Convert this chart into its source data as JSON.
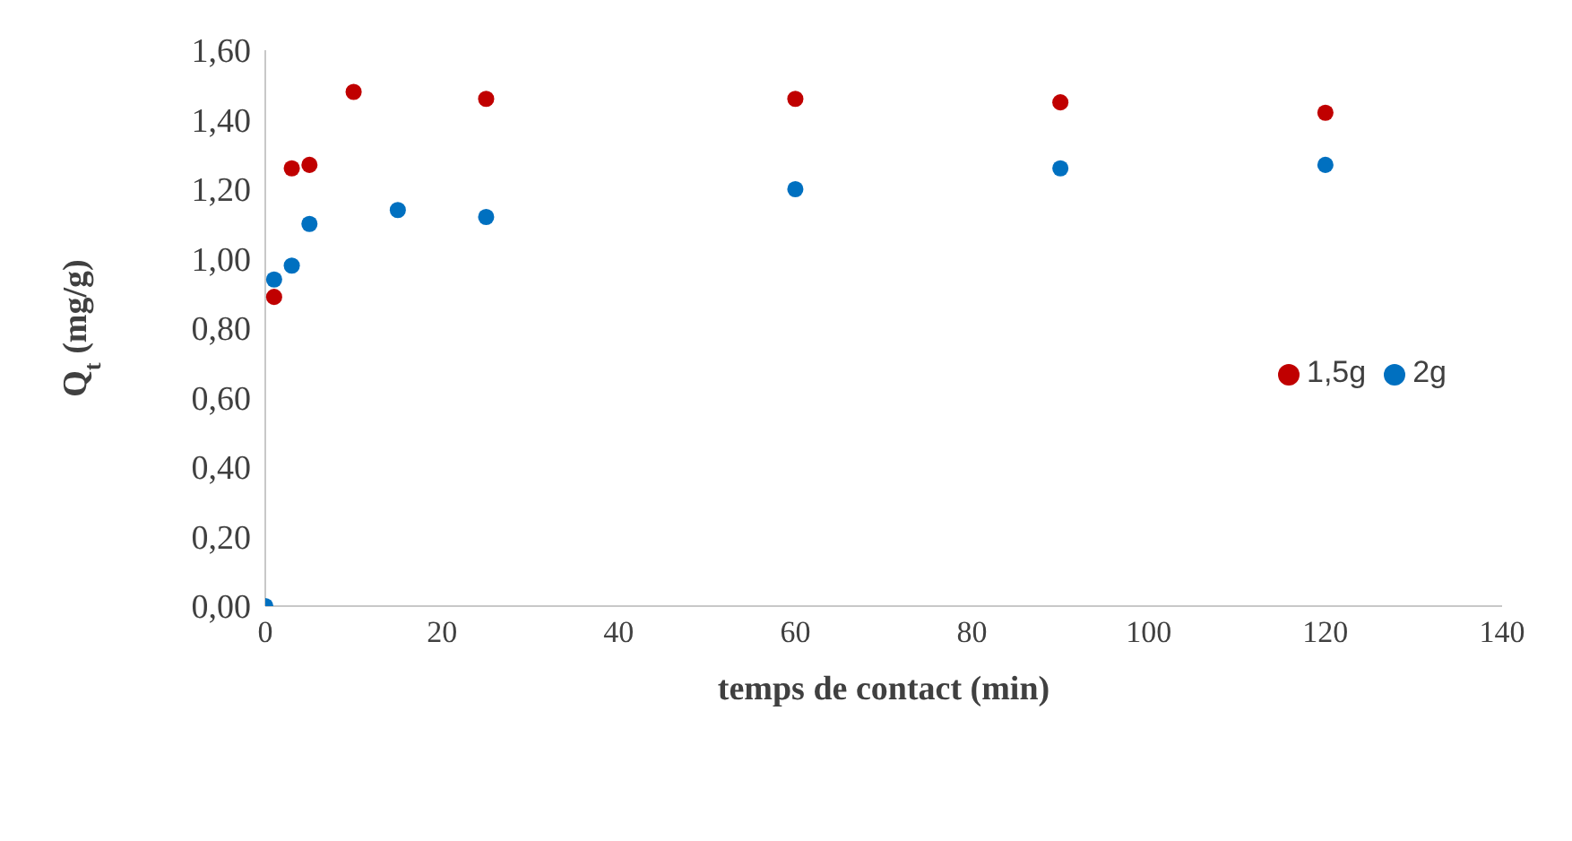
{
  "chart_data": {
    "type": "scatter",
    "xlabel": "temps de contact (min)",
    "ylabel": "Q$_{t}$ (mg/g)",
    "series": [
      {
        "name": "1,5g",
        "color": "#c00000",
        "x": [
          1,
          3,
          5,
          10,
          25,
          60,
          90,
          120
        ],
        "values": [
          0.89,
          1.26,
          1.27,
          1.48,
          1.46,
          1.46,
          1.45,
          1.42
        ]
      },
      {
        "name": "2g",
        "color": "#0070c0",
        "x": [
          0,
          1,
          3,
          5,
          15,
          25,
          60,
          90,
          120
        ],
        "values": [
          0,
          0.94,
          0.98,
          1.1,
          1.14,
          1.12,
          1.2,
          1.26,
          1.27
        ]
      }
    ],
    "xlim": [
      0,
      140
    ],
    "xticks": [
      0,
      20,
      40,
      60,
      80,
      100,
      120,
      140
    ],
    "ylim": [
      0,
      1.6
    ],
    "yticks": [
      {
        "value": 0,
        "label": "0,00"
      },
      {
        "value": 0.2,
        "label": "0,20"
      },
      {
        "value": 0.4,
        "label": "0,40"
      },
      {
        "value": 0.6,
        "label": "0,60"
      },
      {
        "value": 0.8,
        "label": "0,80"
      },
      {
        "value": 1,
        "label": "1,00"
      },
      {
        "value": 1.2,
        "label": "1,20"
      },
      {
        "value": 1.4,
        "label": "1,40"
      },
      {
        "value": 1.6,
        "label": "1,60"
      }
    ],
    "grid": false,
    "legend": "right",
    "marker": "circle"
  }
}
